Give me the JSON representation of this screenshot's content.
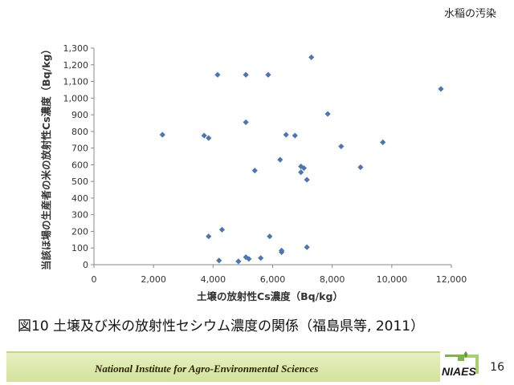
{
  "slide": {
    "section_tag": "水稲の汚染",
    "caption": "図10  土壌及び米の放射性セシウム濃度の関係（福島県等, 2011）",
    "footer_text": "National Institute for Agro-Environmental Sciences",
    "logo_text": "NIAES",
    "page_number": "16"
  },
  "colors": {
    "marker": "#4a77b4",
    "axis": "#888888",
    "footer": "#d8e6a6",
    "logo_accent": "#7ab648"
  },
  "chart_data": {
    "type": "scatter",
    "xlabel": "土壌の放射性Cs濃度（Bq/kg）",
    "ylabel": "当該ほ場の生産者の米の放射性Cs濃度（Bq/kg）",
    "xlim": [
      0,
      12000
    ],
    "ylim": [
      0,
      1300
    ],
    "x_ticks": [
      0,
      2000,
      4000,
      6000,
      8000,
      10000,
      12000
    ],
    "x_tick_labels": [
      "0",
      "2,000",
      "4,000",
      "6,000",
      "8,000",
      "10,000",
      "12,000"
    ],
    "y_ticks": [
      0,
      100,
      200,
      300,
      400,
      500,
      600,
      700,
      800,
      900,
      1000,
      1100,
      1200,
      1300
    ],
    "y_tick_labels": [
      "0",
      "100",
      "200",
      "300",
      "400",
      "500",
      "600",
      "700",
      "800",
      "900",
      "1,000",
      "1,100",
      "1,200",
      "1,300"
    ],
    "grid": false,
    "legend": "none",
    "series": [
      {
        "points": [
          [
            2300,
            780
          ],
          [
            3700,
            775
          ],
          [
            3850,
            760
          ],
          [
            4150,
            1140
          ],
          [
            5100,
            1140
          ],
          [
            5850,
            1140
          ],
          [
            7300,
            1245
          ],
          [
            5100,
            855
          ],
          [
            7850,
            905
          ],
          [
            11650,
            1055
          ],
          [
            6450,
            780
          ],
          [
            6750,
            775
          ],
          [
            8300,
            710
          ],
          [
            9700,
            735
          ],
          [
            6250,
            630
          ],
          [
            6950,
            590
          ],
          [
            7050,
            580
          ],
          [
            6950,
            555
          ],
          [
            7150,
            510
          ],
          [
            5400,
            565
          ],
          [
            8950,
            585
          ],
          [
            3850,
            170
          ],
          [
            4300,
            210
          ],
          [
            5900,
            170
          ],
          [
            7150,
            105
          ],
          [
            6300,
            85
          ],
          [
            6300,
            75
          ],
          [
            5600,
            40
          ],
          [
            5200,
            35
          ],
          [
            5100,
            45
          ],
          [
            4850,
            20
          ],
          [
            4200,
            25
          ]
        ]
      }
    ]
  }
}
